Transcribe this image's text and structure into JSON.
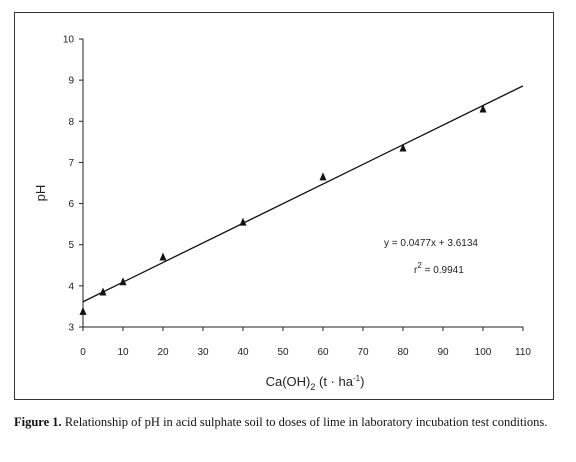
{
  "chart_data": {
    "type": "scatter",
    "title": "",
    "xlabel": "Ca(OH)",
    "xlabel_subscript": "2",
    "xlabel_units_prefix": " (t · ha",
    "xlabel_units_superscript": "-1",
    "xlabel_units_suffix": ")",
    "ylabel": "pH",
    "xlim": [
      0,
      110
    ],
    "ylim": [
      3,
      10
    ],
    "x_ticks": [
      0,
      10,
      20,
      30,
      40,
      50,
      60,
      70,
      80,
      90,
      100,
      110
    ],
    "y_ticks": [
      3,
      4,
      5,
      6,
      7,
      8,
      9,
      10
    ],
    "grid": false,
    "legend": "none",
    "marker": "triangle",
    "series": [
      {
        "x": [
          0,
          5,
          10,
          20,
          40,
          60,
          80,
          100
        ],
        "y": [
          3.38,
          3.85,
          4.1,
          4.7,
          5.55,
          6.65,
          7.35,
          8.3
        ]
      }
    ],
    "trendline": {
      "slope": 0.0477,
      "intercept": 3.6134,
      "x_range": [
        0,
        110
      ]
    },
    "annotations": {
      "equation": "y = 0.0477x + 3.6134",
      "r2_prefix": "r",
      "r2_superscript": "2",
      "r2_suffix": " = 0.9941"
    },
    "colors": {
      "marker": "#111111",
      "line": "#111111",
      "axis": "#222222"
    }
  },
  "caption": {
    "label": "Figure 1.",
    "text": " Relationship of pH in acid sulphate soil to doses of lime in laboratory incubation test conditions."
  }
}
